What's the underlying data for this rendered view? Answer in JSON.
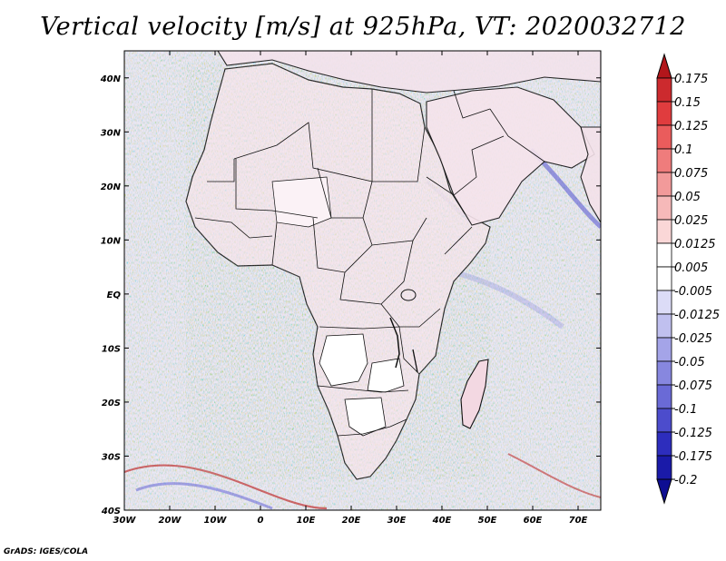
{
  "title": "Vertical velocity [m/s] at 925hPa, VT: 2020032712",
  "footer": "GrADS: IGES/COLA",
  "map": {
    "projection": "latlon",
    "lon_range": [
      -30,
      75
    ],
    "lat_range": [
      -40,
      45
    ],
    "lon_ticks": [
      "30W",
      "20W",
      "10W",
      "0",
      "10E",
      "20E",
      "30E",
      "40E",
      "50E",
      "60E",
      "70E"
    ],
    "lat_ticks": [
      "40N",
      "30N",
      "20N",
      "10N",
      "EQ",
      "10S",
      "20S",
      "30S",
      "40S"
    ],
    "field": "vertical velocity",
    "level": "925hPa",
    "units": "m/s"
  },
  "colorbar": {
    "levels": [
      "0.175",
      "0.15",
      "0.125",
      "0.1",
      "0.075",
      "0.05",
      "0.025",
      "0.0125",
      "0.005",
      "-0.005",
      "-0.0125",
      "-0.025",
      "-0.05",
      "-0.075",
      "-0.1",
      "-0.125",
      "-0.175",
      "-0.2"
    ],
    "colors": [
      "#b2161b",
      "#cc2a2e",
      "#e03c3e",
      "#ea5c5c",
      "#ef7c7c",
      "#f29a9a",
      "#f6b9b9",
      "#fad7d7",
      "#ffffff",
      "#ffffff",
      "#dcdcf7",
      "#c0c0ef",
      "#a4a4e8",
      "#8787df",
      "#6a6ad6",
      "#4c4ccc",
      "#2d2dbd",
      "#1a1aa8",
      "#0e0e92"
    ]
  }
}
